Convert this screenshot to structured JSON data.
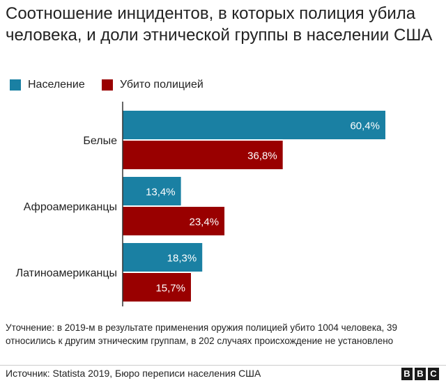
{
  "title": "Соотношение инцидентов, в которых полиция убила человека, и доли этнической группы в населении США",
  "legend": [
    {
      "label": "Население",
      "color": "#1a80a3"
    },
    {
      "label": "Убито полицией",
      "color": "#990000"
    }
  ],
  "chart_data": {
    "type": "bar",
    "orientation": "horizontal",
    "categories": [
      "Белые",
      "Афроамериканцы",
      "Латиноамериканцы"
    ],
    "series": [
      {
        "name": "Население",
        "values": [
          60.4,
          13.4,
          18.3
        ],
        "labels": [
          "60,4%",
          "13,4%",
          "18,3%"
        ],
        "color": "#1a80a3"
      },
      {
        "name": "Убито полицией",
        "values": [
          36.8,
          23.4,
          15.7
        ],
        "labels": [
          "36,8%",
          "23,4%",
          "15,7%"
        ],
        "color": "#990000"
      }
    ],
    "xlim": [
      0,
      65
    ],
    "grid": false,
    "legend_position": "top-left"
  },
  "note": "Уточнение: в 2019-м в результате применения оружия полицией убито 1004 человека, 39 относились к другим этническим группам, в 202 случаях происхождение не установлено",
  "source": "Источник: Statista 2019, Бюро переписи населения США",
  "logo": [
    "B",
    "B",
    "C"
  ]
}
